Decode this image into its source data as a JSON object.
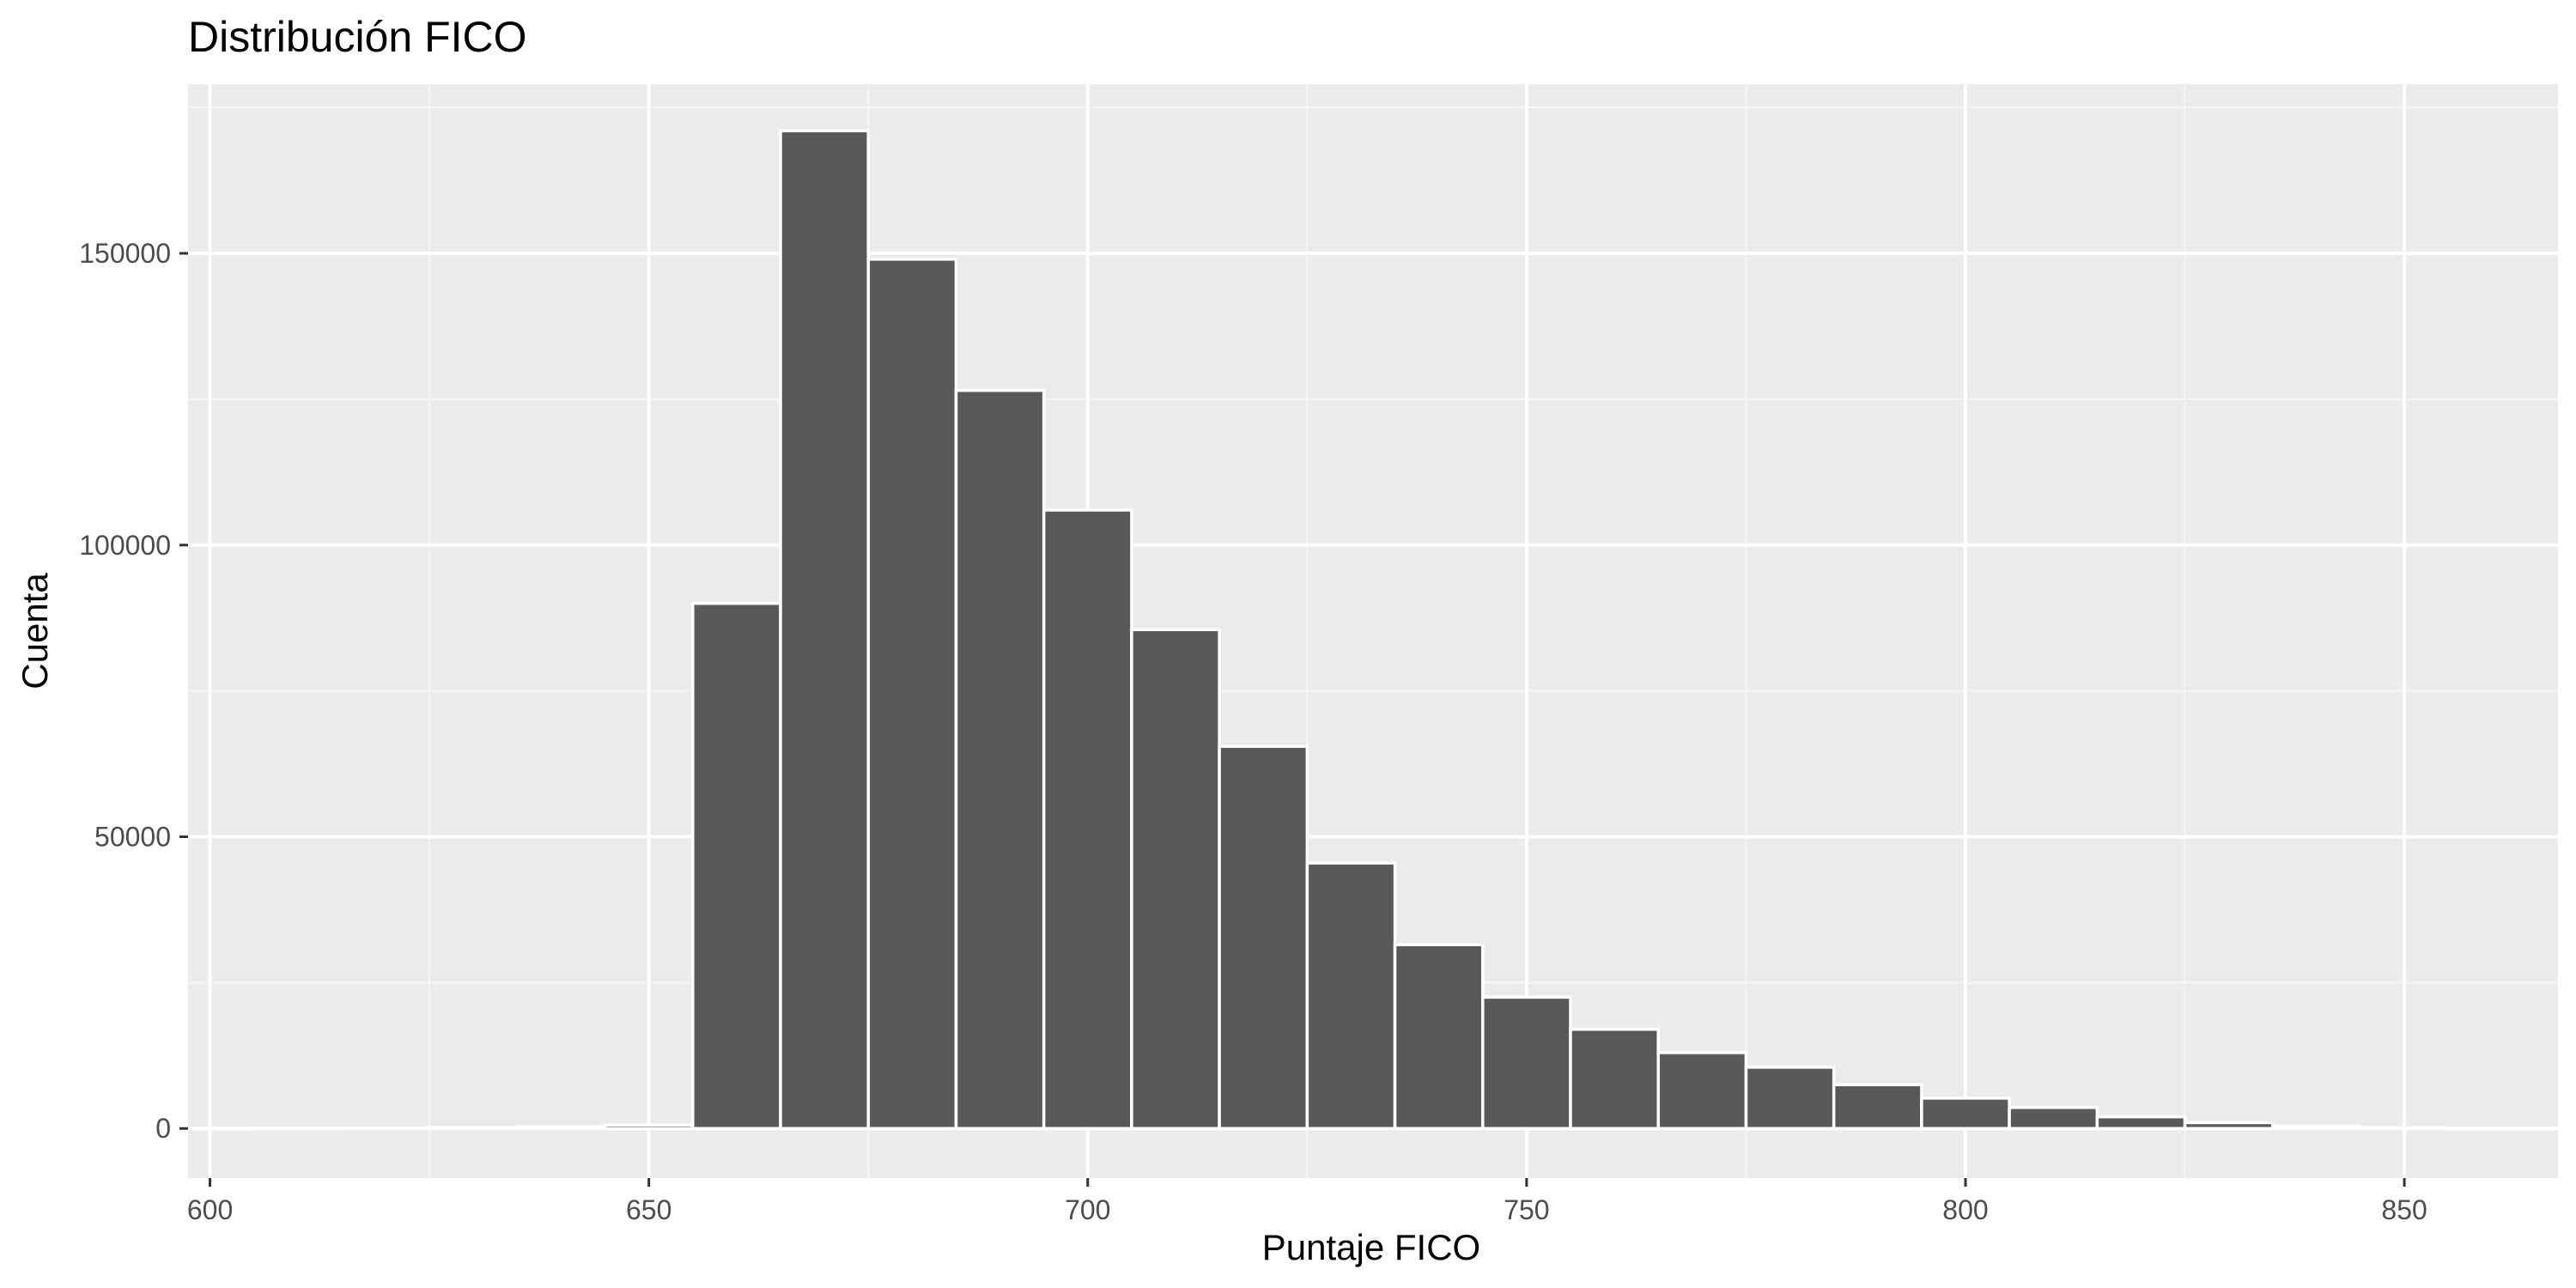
{
  "chart_data": {
    "type": "bar",
    "title": "Distribución FICO",
    "xlabel": "Puntaje FICO",
    "ylabel": "Cuenta",
    "xlim": [
      597.5,
      867.5
    ],
    "ylim": [
      -8500,
      179000
    ],
    "x_ticks": [
      600,
      650,
      700,
      750,
      800,
      850
    ],
    "x_tick_labels": [
      "600",
      "650",
      "700",
      "750",
      "800",
      "850"
    ],
    "y_ticks": [
      0,
      50000,
      100000,
      150000
    ],
    "y_tick_labels": [
      "0",
      "50000",
      "100000",
      "150000"
    ],
    "bin_width": 10,
    "bin_edges_start": 605,
    "x": [
      610,
      620,
      630,
      640,
      650,
      660,
      670,
      680,
      690,
      700,
      710,
      720,
      730,
      740,
      750,
      760,
      770,
      780,
      790,
      800,
      810,
      820,
      830,
      840,
      850
    ],
    "values": [
      50,
      80,
      150,
      300,
      600,
      90000,
      171000,
      149000,
      126500,
      106000,
      85500,
      65500,
      45500,
      31500,
      22500,
      17000,
      13000,
      10500,
      7500,
      5200,
      3600,
      2000,
      1000,
      400,
      120
    ],
    "grid": true,
    "legend": "none",
    "colors": {
      "bar_fill": "#595959",
      "bar_stroke": "#ffffff",
      "panel_background": "#ebebeb",
      "grid_major": "#ffffff",
      "grid_minor": "#f5f5f5",
      "tick_text": "#4d4d4d"
    }
  }
}
